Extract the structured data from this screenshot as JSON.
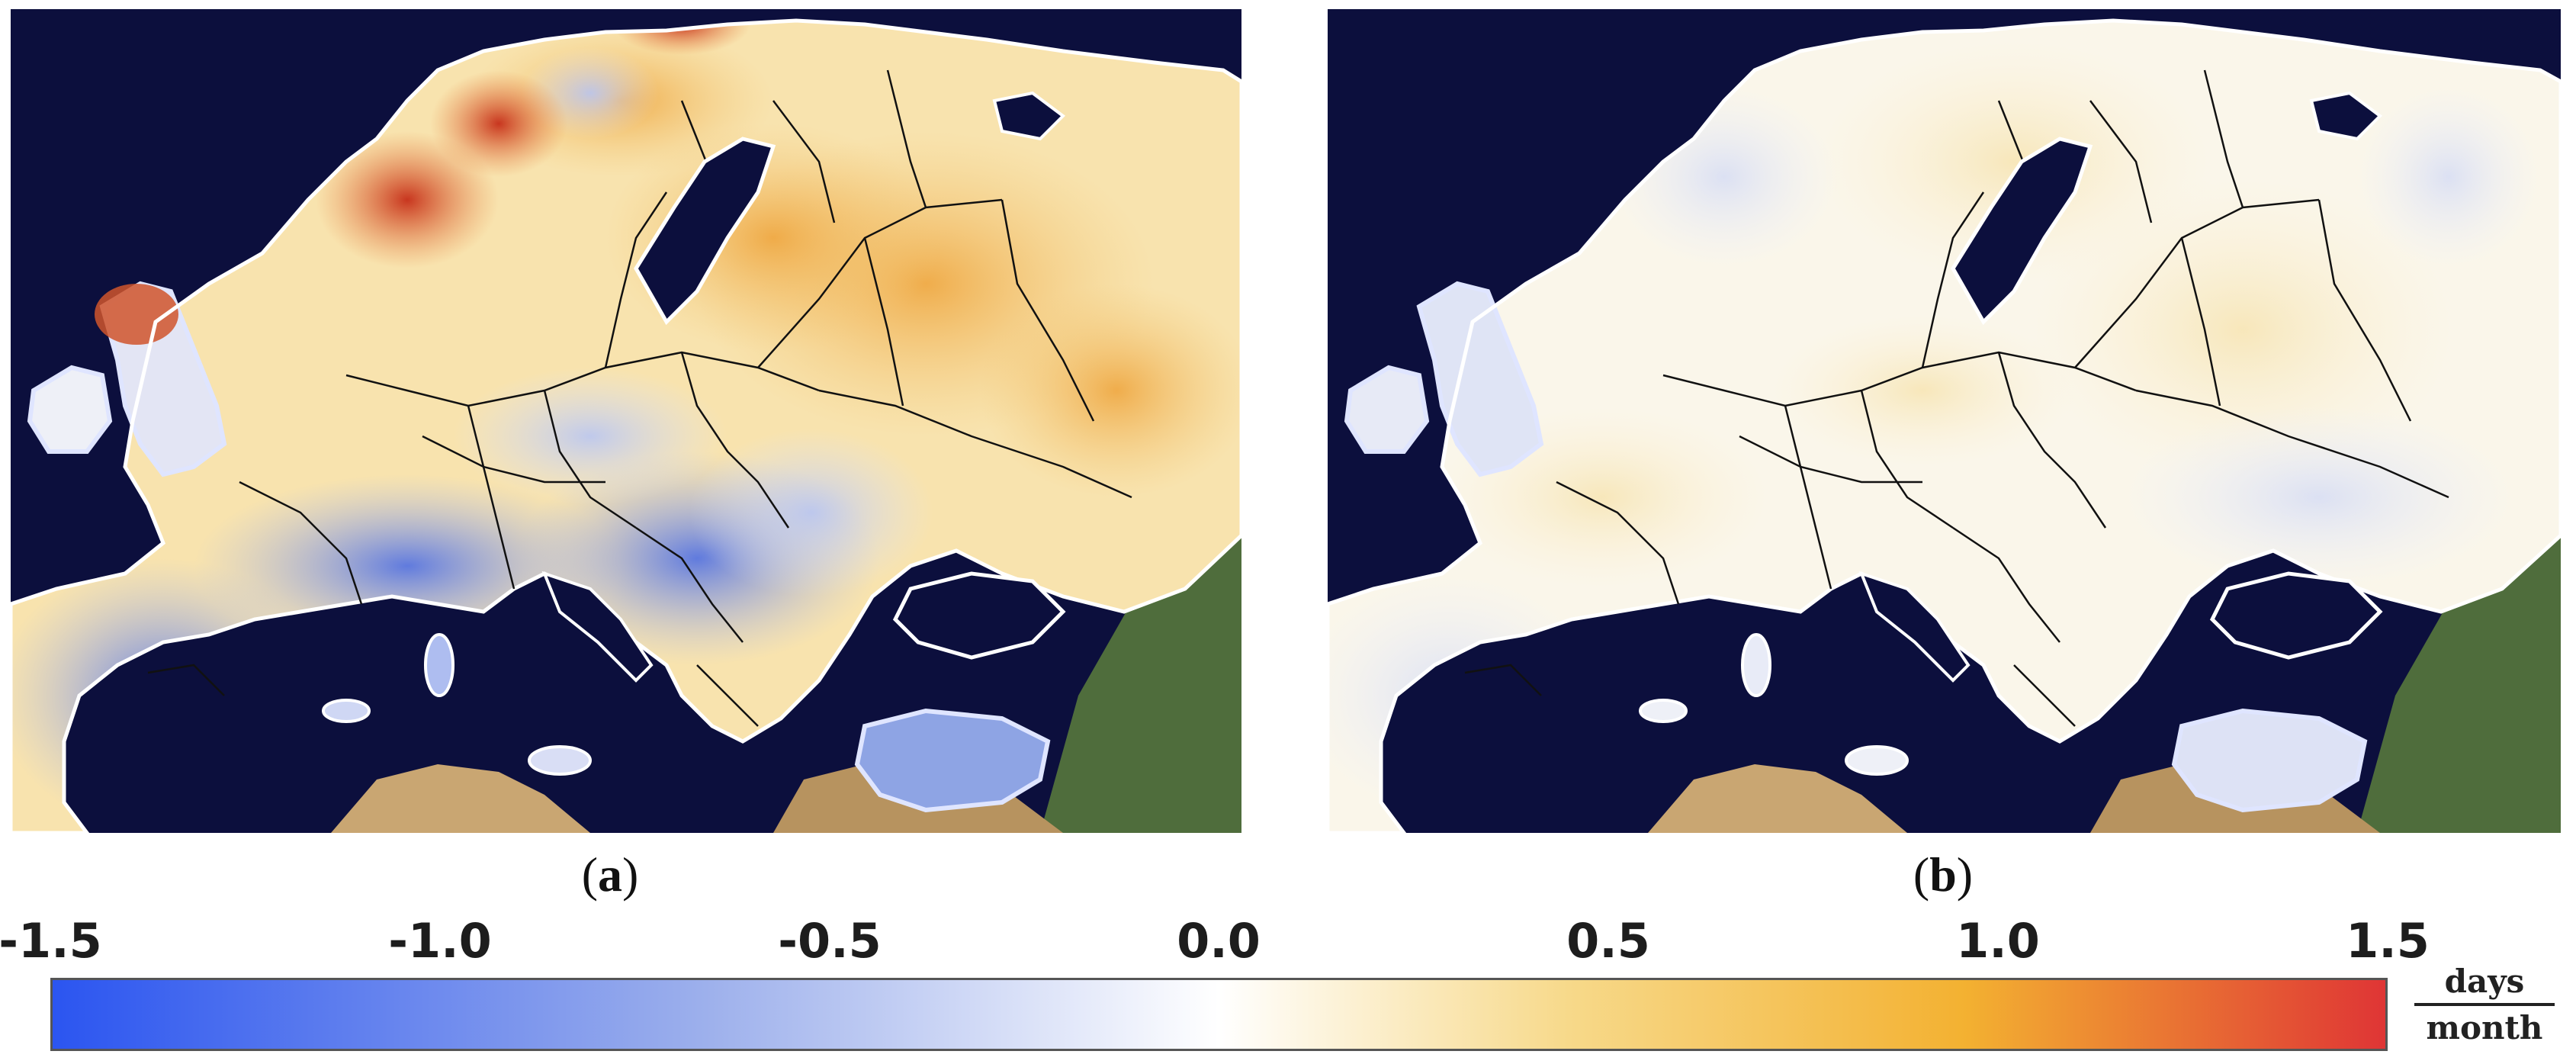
{
  "figure": {
    "panels": [
      {
        "id": "a",
        "label_letter": "a",
        "description": "trend map, stronger anomalies"
      },
      {
        "id": "b",
        "label_letter": "b",
        "description": "trend map, weak anomalies"
      }
    ]
  },
  "colorbar": {
    "ticks": [
      "-1.5",
      "-1.0",
      "-0.5",
      "0.0",
      "0.5",
      "1.0",
      "1.5"
    ],
    "min": -1.5,
    "max": 1.5,
    "units_numerator": "days",
    "units_denominator": "month",
    "colors": {
      "neg_max": "#2b55f0",
      "neg_mid": "#9db0ec",
      "zero": "#ffffff",
      "pos_mid": "#f7d98a",
      "pos_strong": "#f3b131",
      "pos_max": "#df3535"
    }
  },
  "map_colors": {
    "sea": "#0c0f3d",
    "land_outside": "#4d6b3a",
    "desert": "#c7a574",
    "border": "#111111",
    "coast": "#ffffff"
  }
}
